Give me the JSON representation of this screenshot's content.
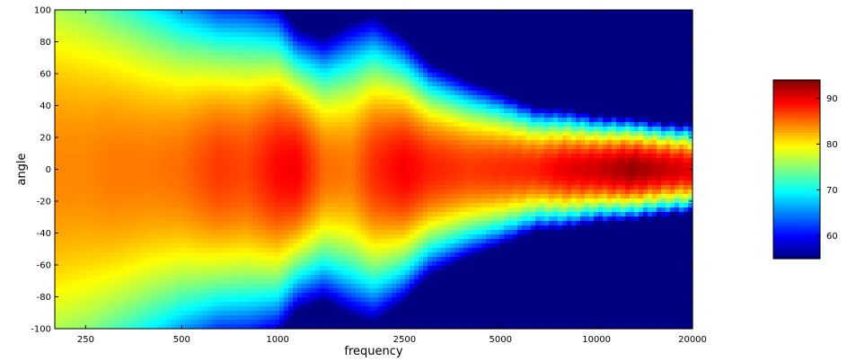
{
  "chart_data": {
    "type": "heatmap",
    "xlabel": "frequency",
    "ylabel": "angle",
    "x_scale": "log",
    "xlim": [
      200,
      20000
    ],
    "ylim": [
      -100,
      100
    ],
    "x_ticks": [
      250,
      500,
      1000,
      2500,
      5000,
      10000,
      20000
    ],
    "y_ticks": [
      -100,
      -80,
      -60,
      -40,
      -20,
      0,
      20,
      40,
      60,
      80,
      100
    ],
    "colorbar": {
      "colormap": "jet",
      "range": [
        55,
        94
      ],
      "ticks": [
        60,
        70,
        80,
        90
      ]
    },
    "field_profile": {
      "frequencies": [
        200,
        250,
        300,
        400,
        500,
        650,
        800,
        1000,
        1150,
        1400,
        1700,
        2000,
        2500,
        3000,
        4000,
        5000,
        6500,
        8000,
        10000,
        13000,
        16000,
        20000
      ],
      "on_axis_level": [
        84,
        84,
        84.5,
        84.5,
        85,
        87,
        86.5,
        89,
        89.5,
        85,
        84.5,
        87.5,
        89.5,
        88,
        87,
        87.5,
        88,
        90,
        91,
        93,
        91.5,
        90
      ],
      "half_width_deg": [
        190,
        175,
        155,
        135,
        120,
        105,
        105,
        95,
        80,
        80,
        90,
        90,
        75,
        62,
        52,
        45,
        36,
        34,
        30,
        28,
        26,
        25
      ]
    }
  }
}
